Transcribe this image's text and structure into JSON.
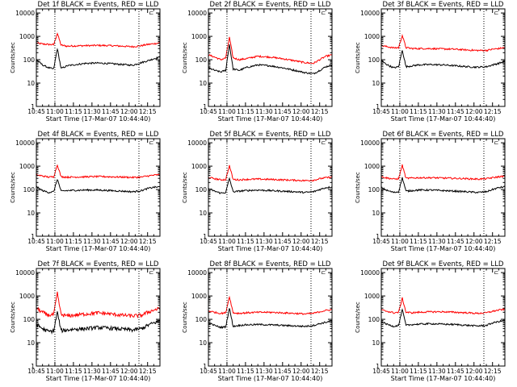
{
  "figure": {
    "colors": {
      "background": "#ffffff",
      "axes": "#000000",
      "events": "#000000",
      "lld": "#ff0000"
    }
  },
  "chart_data": [
    {
      "type": "line",
      "title": "Det 1f BLACK = Events, RED = LLD",
      "xlabel": "Start Time (17-Mar-07 10:44:40)",
      "ylabel": "Counts/sec",
      "x_ticks": [
        "10:45",
        "11:00",
        "11:15",
        "11:30",
        "11:45",
        "12:00",
        "12:15"
      ],
      "y_ticks": [
        "1",
        "10",
        "100",
        "1000",
        "10000"
      ],
      "yscale": "log",
      "ylim": [
        1,
        15000
      ],
      "xlim_minutes": [
        0,
        100
      ],
      "vertical_lines_minutes": [
        15,
        83
      ],
      "tr_mark": "ㄷ",
      "x": [
        0,
        5,
        10,
        14,
        17,
        20,
        25,
        30,
        40,
        50,
        60,
        70,
        78,
        85,
        90,
        95,
        100
      ],
      "series": [
        {
          "name": "LLD",
          "color": "#ff0000",
          "values": [
            520,
            470,
            450,
            440,
            1350,
            420,
            380,
            390,
            400,
            410,
            400,
            380,
            360,
            400,
            450,
            480,
            530
          ]
        },
        {
          "name": "Events",
          "color": "#000000",
          "values": [
            100,
            60,
            45,
            40,
            300,
            42,
            55,
            60,
            70,
            72,
            68,
            62,
            58,
            75,
            90,
            110,
            130
          ]
        }
      ]
    },
    {
      "type": "line",
      "title": "Det 2f BLACK = Events, RED = LLD",
      "xlabel": "Start Time (17-Mar-07 10:44:40)",
      "ylabel": "Counts/sec",
      "x_ticks": [
        "10:45",
        "11:00",
        "11:15",
        "11:30",
        "11:45",
        "12:00",
        "12:15"
      ],
      "y_ticks": [
        "1",
        "10",
        "100",
        "1000",
        "10000"
      ],
      "yscale": "log",
      "ylim": [
        1,
        15000
      ],
      "xlim_minutes": [
        0,
        100
      ],
      "vertical_lines_minutes": [
        15,
        83
      ],
      "tr_mark": "ㄷ",
      "x": [
        0,
        5,
        10,
        14,
        17,
        20,
        25,
        30,
        40,
        50,
        60,
        70,
        78,
        85,
        90,
        95,
        100
      ],
      "series": [
        {
          "name": "LLD",
          "color": "#ff0000",
          "values": [
            160,
            130,
            100,
            120,
            900,
            120,
            100,
            110,
            140,
            130,
            110,
            90,
            75,
            70,
            100,
            140,
            160
          ]
        },
        {
          "name": "Events",
          "color": "#000000",
          "values": [
            45,
            35,
            30,
            35,
            450,
            40,
            35,
            45,
            60,
            55,
            45,
            35,
            28,
            25,
            35,
            50,
            60
          ]
        }
      ]
    },
    {
      "type": "line",
      "title": "Det 3f BLACK = Events, RED = LLD",
      "xlabel": "Start Time (17-Mar-07 10:44:40)",
      "ylabel": "Counts/sec",
      "x_ticks": [
        "10:45",
        "11:00",
        "11:15",
        "11:30",
        "11:45",
        "12:00",
        "12:15"
      ],
      "y_ticks": [
        "1",
        "10",
        "100",
        "1000",
        "10000"
      ],
      "yscale": "log",
      "ylim": [
        1,
        15000
      ],
      "xlim_minutes": [
        0,
        100
      ],
      "vertical_lines_minutes": [
        15,
        83
      ],
      "tr_mark": "ㄷ",
      "x": [
        0,
        5,
        10,
        14,
        17,
        20,
        25,
        30,
        40,
        50,
        60,
        70,
        78,
        85,
        90,
        95,
        100
      ],
      "series": [
        {
          "name": "LLD",
          "color": "#ff0000",
          "values": [
            400,
            360,
            320,
            330,
            1100,
            330,
            300,
            300,
            300,
            290,
            280,
            260,
            250,
            250,
            280,
            300,
            330
          ]
        },
        {
          "name": "Events",
          "color": "#000000",
          "values": [
            90,
            60,
            45,
            50,
            260,
            50,
            55,
            60,
            62,
            60,
            55,
            50,
            48,
            50,
            60,
            70,
            85
          ]
        }
      ]
    },
    {
      "type": "line",
      "title": "Det 4f BLACK = Events, RED = LLD",
      "xlabel": "Start Time (17-Mar-07 10:44:40)",
      "ylabel": "Counts/sec",
      "x_ticks": [
        "10:45",
        "11:00",
        "11:15",
        "11:30",
        "11:45",
        "12:00",
        "12:15"
      ],
      "y_ticks": [
        "1",
        "10",
        "100",
        "1000",
        "10000"
      ],
      "yscale": "log",
      "ylim": [
        1,
        15000
      ],
      "xlim_minutes": [
        0,
        100
      ],
      "vertical_lines_minutes": [
        15,
        83
      ],
      "tr_mark": "ㄷ",
      "x": [
        0,
        5,
        10,
        14,
        17,
        20,
        25,
        30,
        40,
        50,
        60,
        70,
        78,
        85,
        90,
        95,
        100
      ],
      "series": [
        {
          "name": "LLD",
          "color": "#ff0000",
          "values": [
            420,
            380,
            340,
            350,
            1150,
            350,
            340,
            340,
            350,
            360,
            350,
            340,
            330,
            340,
            380,
            410,
            430
          ]
        },
        {
          "name": "Events",
          "color": "#000000",
          "values": [
            130,
            90,
            75,
            80,
            280,
            85,
            90,
            92,
            95,
            95,
            90,
            85,
            80,
            90,
            110,
            125,
            130
          ]
        }
      ]
    },
    {
      "type": "line",
      "title": "Det 5f BLACK = Events, RED = LLD",
      "xlabel": "Start Time (17-Mar-07 10:44:40)",
      "ylabel": "Counts/sec",
      "x_ticks": [
        "10:45",
        "11:00",
        "11:15",
        "11:30",
        "11:45",
        "12:00",
        "12:15"
      ],
      "y_ticks": [
        "1",
        "10",
        "100",
        "1000",
        "10000"
      ],
      "yscale": "log",
      "ylim": [
        1,
        15000
      ],
      "xlim_minutes": [
        0,
        100
      ],
      "vertical_lines_minutes": [
        15,
        83
      ],
      "tr_mark": "ㄷ",
      "x": [
        0,
        5,
        10,
        14,
        17,
        20,
        25,
        30,
        40,
        50,
        60,
        70,
        78,
        85,
        90,
        95,
        100
      ],
      "series": [
        {
          "name": "LLD",
          "color": "#ff0000",
          "values": [
            330,
            290,
            260,
            270,
            1050,
            270,
            260,
            270,
            280,
            270,
            260,
            250,
            240,
            250,
            290,
            320,
            340
          ]
        },
        {
          "name": "Events",
          "color": "#000000",
          "values": [
            110,
            85,
            70,
            75,
            300,
            80,
            85,
            90,
            95,
            90,
            85,
            80,
            75,
            80,
            100,
            120,
            130
          ]
        }
      ]
    },
    {
      "type": "line",
      "title": "Det 6f BLACK = Events, RED = LLD",
      "xlabel": "Start Time (17-Mar-07 10:44:40)",
      "ylabel": "Counts/sec",
      "x_ticks": [
        "10:45",
        "11:00",
        "11:15",
        "11:30",
        "11:45",
        "12:00",
        "12:15"
      ],
      "y_ticks": [
        "1",
        "10",
        "100",
        "1000",
        "10000"
      ],
      "yscale": "log",
      "ylim": [
        1,
        15000
      ],
      "xlim_minutes": [
        0,
        100
      ],
      "vertical_lines_minutes": [
        15,
        83
      ],
      "tr_mark": "ㄷ",
      "x": [
        0,
        5,
        10,
        14,
        17,
        20,
        25,
        30,
        40,
        50,
        60,
        70,
        78,
        85,
        90,
        95,
        100
      ],
      "series": [
        {
          "name": "LLD",
          "color": "#ff0000",
          "values": [
            350,
            310,
            280,
            290,
            1100,
            300,
            310,
            320,
            320,
            310,
            300,
            290,
            280,
            290,
            320,
            350,
            370
          ]
        },
        {
          "name": "Events",
          "color": "#000000",
          "values": [
            120,
            90,
            75,
            80,
            320,
            85,
            90,
            95,
            95,
            90,
            85,
            80,
            75,
            80,
            100,
            120,
            130
          ]
        }
      ]
    },
    {
      "type": "line",
      "title": "Det 7f BLACK = Events, RED = LLD",
      "xlabel": "Start Time (17-Mar-07 10:44:40)",
      "ylabel": "Counts/sec",
      "x_ticks": [
        "10:45",
        "11:00",
        "11:15",
        "11:30",
        "11:45",
        "12:00",
        "12:15"
      ],
      "y_ticks": [
        "1",
        "10",
        "100",
        "1000",
        "10000"
      ],
      "yscale": "log",
      "ylim": [
        1,
        15000
      ],
      "xlim_minutes": [
        0,
        100
      ],
      "vertical_lines_minutes": [
        15,
        83
      ],
      "tr_mark": "ㄷ",
      "x": [
        0,
        5,
        10,
        14,
        17,
        20,
        25,
        30,
        40,
        50,
        60,
        70,
        78,
        85,
        90,
        95,
        100
      ],
      "series": [
        {
          "name": "LLD",
          "color": "#ff0000",
          "values": [
            300,
            200,
            150,
            160,
            1300,
            160,
            140,
            150,
            170,
            190,
            170,
            150,
            140,
            150,
            200,
            250,
            290
          ]
        },
        {
          "name": "Events",
          "color": "#000000",
          "values": [
            60,
            40,
            30,
            32,
            200,
            33,
            35,
            38,
            40,
            45,
            42,
            38,
            35,
            40,
            55,
            70,
            85
          ]
        }
      ]
    },
    {
      "type": "line",
      "title": "Det 8f BLACK = Events, RED = LLD",
      "xlabel": "Start Time (17-Mar-07 10:44:40)",
      "ylabel": "Counts/sec",
      "x_ticks": [
        "10:45",
        "11:00",
        "11:15",
        "11:30",
        "11:45",
        "12:00",
        "12:15"
      ],
      "y_ticks": [
        "1",
        "10",
        "100",
        "1000",
        "10000"
      ],
      "yscale": "log",
      "ylim": [
        1,
        15000
      ],
      "xlim_minutes": [
        0,
        100
      ],
      "vertical_lines_minutes": [
        15,
        83
      ],
      "tr_mark": "ㄷ",
      "x": [
        0,
        5,
        10,
        14,
        17,
        20,
        25,
        30,
        40,
        50,
        60,
        70,
        78,
        85,
        90,
        95,
        100
      ],
      "series": [
        {
          "name": "LLD",
          "color": "#ff0000",
          "values": [
            230,
            200,
            180,
            190,
            950,
            190,
            180,
            190,
            200,
            200,
            190,
            180,
            170,
            180,
            210,
            240,
            260
          ]
        },
        {
          "name": "Events",
          "color": "#000000",
          "values": [
            70,
            55,
            45,
            48,
            300,
            50,
            55,
            58,
            60,
            58,
            55,
            52,
            50,
            55,
            65,
            75,
            85
          ]
        }
      ]
    },
    {
      "type": "line",
      "title": "Det 9f BLACK = Events, RED = LLD",
      "xlabel": "Start Time (17-Mar-07 10:44:40)",
      "ylabel": "Counts/sec",
      "x_ticks": [
        "10:45",
        "11:00",
        "11:15",
        "11:30",
        "11:45",
        "12:00",
        "12:15"
      ],
      "y_ticks": [
        "1",
        "10",
        "100",
        "1000",
        "10000"
      ],
      "yscale": "log",
      "ylim": [
        1,
        15000
      ],
      "xlim_minutes": [
        0,
        100
      ],
      "vertical_lines_minutes": [
        15,
        83
      ],
      "tr_mark": "ㄷ",
      "x": [
        0,
        5,
        10,
        14,
        17,
        20,
        25,
        30,
        40,
        50,
        60,
        70,
        78,
        85,
        90,
        95,
        100
      ],
      "series": [
        {
          "name": "LLD",
          "color": "#ff0000",
          "values": [
            250,
            220,
            190,
            200,
            800,
            200,
            190,
            200,
            210,
            210,
            200,
            190,
            180,
            190,
            220,
            250,
            270
          ]
        },
        {
          "name": "Events",
          "color": "#000000",
          "values": [
            80,
            60,
            50,
            55,
            260,
            55,
            60,
            62,
            65,
            62,
            60,
            55,
            52,
            55,
            70,
            80,
            90
          ]
        }
      ]
    }
  ]
}
